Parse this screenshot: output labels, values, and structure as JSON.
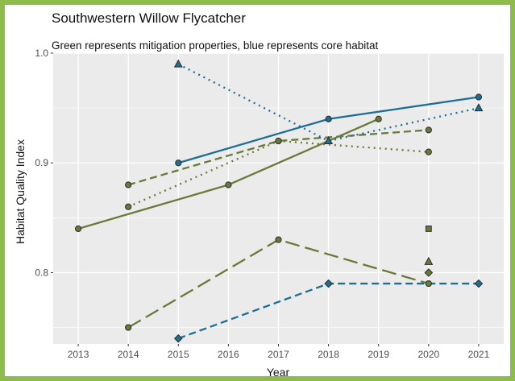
{
  "chart_data": {
    "type": "line",
    "title": "Southwestern Willow Flycatcher",
    "subtitle": "Green represents mitigation properties, blue represents core habitat",
    "xlabel": "Year",
    "ylabel": "Habitat Quality Index",
    "x_ticks": [
      "2013",
      "2014",
      "2015",
      "2016",
      "2017",
      "2018",
      "2019",
      "2020",
      "2021"
    ],
    "y_ticks": [
      "0.8",
      "0.9",
      "1.0"
    ],
    "xlim": [
      2012.5,
      2021.5
    ],
    "ylim": [
      0.735,
      1.0
    ],
    "grid": true,
    "legend": "none",
    "colors": {
      "green": "#687a38",
      "blue": "#1e6f94",
      "panel": "#ebebeb",
      "grid": "#ffffff",
      "frame": "#8dbb4c"
    },
    "series": [
      {
        "color": "green",
        "line": "solid",
        "marker": "circle",
        "points": [
          [
            2013,
            0.84
          ],
          [
            2016,
            0.88
          ],
          [
            2019,
            0.94
          ]
        ]
      },
      {
        "color": "green",
        "line": "dashed",
        "marker": "circle",
        "points": [
          [
            2014,
            0.88
          ],
          [
            2017,
            0.92
          ],
          [
            2020,
            0.93
          ]
        ]
      },
      {
        "color": "green",
        "line": "dotted",
        "marker": "circle",
        "points": [
          [
            2014,
            0.86
          ],
          [
            2017,
            0.92
          ],
          [
            2020,
            0.91
          ]
        ]
      },
      {
        "color": "green",
        "line": "longdash",
        "marker": "circle",
        "points": [
          [
            2014,
            0.75
          ],
          [
            2017,
            0.83
          ],
          [
            2020,
            0.79
          ]
        ]
      },
      {
        "color": "green",
        "line": "none",
        "marker": "square",
        "points": [
          [
            2020,
            0.84
          ]
        ]
      },
      {
        "color": "green",
        "line": "none",
        "marker": "triangle",
        "points": [
          [
            2020,
            0.81
          ]
        ]
      },
      {
        "color": "green",
        "line": "none",
        "marker": "diamond",
        "points": [
          [
            2020,
            0.8
          ]
        ]
      },
      {
        "color": "blue",
        "line": "solid",
        "marker": "circle",
        "points": [
          [
            2015,
            0.9
          ],
          [
            2018,
            0.94
          ],
          [
            2021,
            0.96
          ]
        ]
      },
      {
        "color": "blue",
        "line": "dotted",
        "marker": "triangle",
        "points": [
          [
            2015,
            0.99
          ],
          [
            2018,
            0.92
          ],
          [
            2021,
            0.95
          ]
        ]
      },
      {
        "color": "blue",
        "line": "dashed",
        "marker": "diamond",
        "points": [
          [
            2015,
            0.74
          ],
          [
            2018,
            0.79
          ],
          [
            2021,
            0.79
          ]
        ]
      }
    ]
  }
}
